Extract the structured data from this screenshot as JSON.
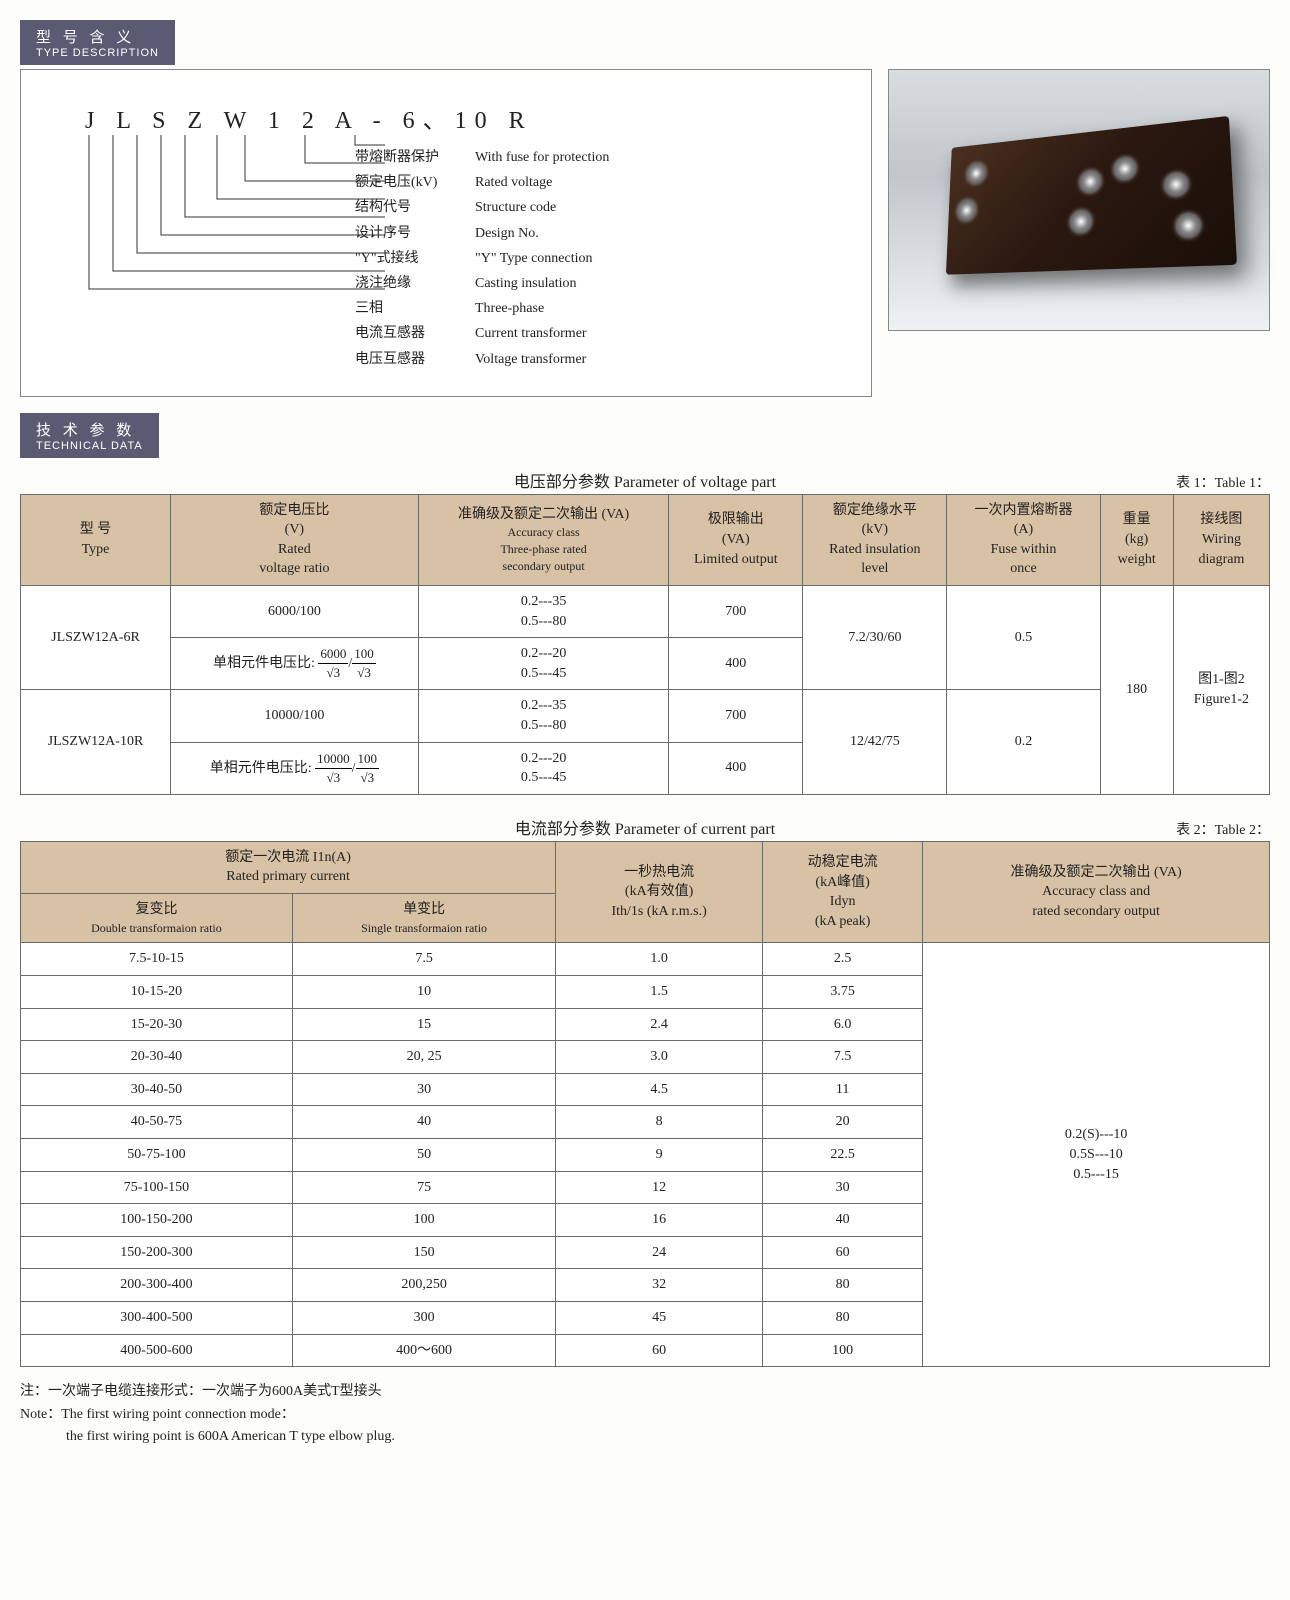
{
  "sections": {
    "type": {
      "cn": "型 号 含 义",
      "en": "TYPE DESCRIPTION"
    },
    "tech": {
      "cn": "技 术 参 数",
      "en": "TECHNICAL DATA"
    }
  },
  "typeCode": "J L S Z W 1 2 A - 6、10  R",
  "typeDesc": [
    {
      "cn": "带熔断器保护",
      "en": "With fuse for protection"
    },
    {
      "cn": "额定电压(kV)",
      "en": "Rated voltage"
    },
    {
      "cn": "结构代号",
      "en": "Structure code"
    },
    {
      "cn": "设计序号",
      "en": "Design No."
    },
    {
      "cn": "\"Y\"式接线",
      "en": "\"Y\" Type connection"
    },
    {
      "cn": "浇注绝缘",
      "en": "Casting insulation"
    },
    {
      "cn": "三相",
      "en": "Three-phase"
    },
    {
      "cn": "电流互感器",
      "en": "Current transformer"
    },
    {
      "cn": "电压互感器",
      "en": "Voltage transformer"
    }
  ],
  "table1": {
    "caption": "电压部分参数   Parameter of voltage part",
    "label": "表 1：Table 1：",
    "headers": {
      "type": {
        "cn": "型    号",
        "en": "Type"
      },
      "ratio": {
        "cn": "额定电压比\n(V)",
        "en": "Rated\nvoltage ratio"
      },
      "accuracy": {
        "cn": "准确级及额定二次输出 (VA)",
        "en": "Accuracy class\nThree-phase rated\nsecondary output"
      },
      "limited": {
        "cn": "极限输出\n(VA)",
        "en": "Limited output"
      },
      "insulation": {
        "cn": "额定绝缘水平\n(kV)",
        "en": "Rated insulation\nlevel"
      },
      "fuse": {
        "cn": "一次内置熔断器\n(A)",
        "en": "Fuse within\nonce"
      },
      "weight": {
        "cn": "重量\n(kg)",
        "en": "weight"
      },
      "wiring": {
        "cn": "接线图",
        "en": "Wiring\ndiagram"
      }
    },
    "phaseLabel": "单相元件电压比:",
    "rows": [
      {
        "type": "JLSZW12A-6R",
        "r1": "6000/100",
        "a1": "0.2---35\n0.5---80",
        "l1": "700",
        "r2frac": {
          "tl": "6000",
          "bl": "√3",
          "tr": "100",
          "br": "√3"
        },
        "a2": "0.2---20\n0.5---45",
        "l2": "400",
        "ins": "7.2/30/60",
        "fuse": "0.5"
      },
      {
        "type": "JLSZW12A-10R",
        "r1": "10000/100",
        "a1": "0.2---35\n0.5---80",
        "l1": "700",
        "r2frac": {
          "tl": "10000",
          "bl": "√3",
          "tr": "100",
          "br": "√3"
        },
        "a2": "0.2---20\n0.5---45",
        "l2": "400",
        "ins": "12/42/75",
        "fuse": "0.2"
      }
    ],
    "weight": "180",
    "wiring": "图1-图2\nFigure1-2"
  },
  "table2": {
    "caption": "电流部分参数   Parameter of current part",
    "label": "表 2：Table 2：",
    "headers": {
      "primary": {
        "cn": "额定一次电流 I1n(A)",
        "en": "Rated primary current"
      },
      "double": {
        "cn": "复变比",
        "en": "Double transformaion ratio"
      },
      "single": {
        "cn": "单变比",
        "en": "Single transformaion ratio"
      },
      "ith": {
        "cn": "一秒热电流\n(kA有效值)",
        "en": "Ith/1s (kA r.m.s.)"
      },
      "idyn": {
        "cn": "动稳定电流\n(kA峰值)\nIdyn",
        "en": "(kA peak)"
      },
      "accuracy": {
        "cn": "准确级及额定二次输出 (VA)",
        "en": "Accuracy class and\nrated secondary output"
      }
    },
    "rows": [
      {
        "d": "7.5-10-15",
        "s": "7.5",
        "ith": "1.0",
        "idyn": "2.5"
      },
      {
        "d": "10-15-20",
        "s": "10",
        "ith": "1.5",
        "idyn": "3.75"
      },
      {
        "d": "15-20-30",
        "s": "15",
        "ith": "2.4",
        "idyn": "6.0"
      },
      {
        "d": "20-30-40",
        "s": "20, 25",
        "ith": "3.0",
        "idyn": "7.5"
      },
      {
        "d": "30-40-50",
        "s": "30",
        "ith": "4.5",
        "idyn": "11"
      },
      {
        "d": "40-50-75",
        "s": "40",
        "ith": "8",
        "idyn": "20"
      },
      {
        "d": "50-75-100",
        "s": "50",
        "ith": "9",
        "idyn": "22.5"
      },
      {
        "d": "75-100-150",
        "s": "75",
        "ith": "12",
        "idyn": "30"
      },
      {
        "d": "100-150-200",
        "s": "100",
        "ith": "16",
        "idyn": "40"
      },
      {
        "d": "150-200-300",
        "s": "150",
        "ith": "24",
        "idyn": "60"
      },
      {
        "d": "200-300-400",
        "s": "200,250",
        "ith": "32",
        "idyn": "80"
      },
      {
        "d": "300-400-500",
        "s": "300",
        "ith": "45",
        "idyn": "80"
      },
      {
        "d": "400-500-600",
        "s": "400～600",
        "ith": "60",
        "idyn": "100"
      }
    ],
    "accuracy": "0.2(S)---10\n0.5S---10\n0.5---15"
  },
  "note": {
    "cn": "注：一次端子电缆连接形式：一次端子为600A美式T型接头",
    "en1": "Note：The first wiring point connection mode：",
    "en2": "the first wiring point is 600A American T type elbow plug."
  },
  "colors": {
    "headerBg": "#5a5a72",
    "thBg": "#d8c2a5",
    "border": "#6b6b6b"
  }
}
